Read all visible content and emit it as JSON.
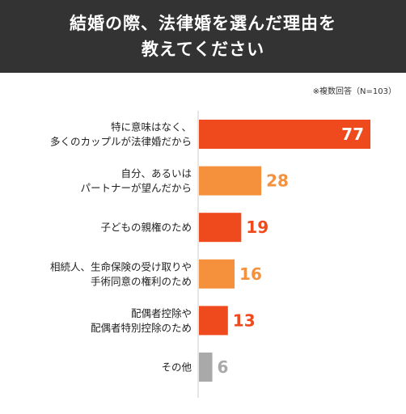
{
  "title_lines": [
    "結婚の際、法律婚を選んだ理由を",
    "教えてください"
  ],
  "note": "※複数回答（N=103）",
  "colors": {
    "header_bg": "#333333",
    "top": "#ee4a1d",
    "mid": "#f5913d",
    "other": "#a9a9a9",
    "value_light": "#ffffff"
  },
  "chart_data": {
    "type": "bar",
    "orientation": "horizontal",
    "categories": [
      [
        "特に意味はなく、",
        "多くのカップルが法律婚だから"
      ],
      [
        "自分、あるいは",
        "パートナーが望んだから"
      ],
      [
        "子どもの親権のため"
      ],
      [
        "相続人、生命保険の受け取りや",
        "手術同意の権利のため"
      ],
      [
        "配偶者控除や",
        "配偶者特別控除のため"
      ],
      [
        "その他"
      ]
    ],
    "values": [
      77,
      28,
      19,
      16,
      13,
      6
    ],
    "bar_colors": [
      "#ee4a1d",
      "#f5913d",
      "#ee4a1d",
      "#f5913d",
      "#ee4a1d",
      "#a9a9a9"
    ],
    "value_colors": [
      "#ffffff",
      "#f5913d",
      "#ee4a1d",
      "#f5913d",
      "#ee4a1d",
      "#a9a9a9"
    ],
    "xlim": [
      0,
      77
    ],
    "grid": false
  }
}
